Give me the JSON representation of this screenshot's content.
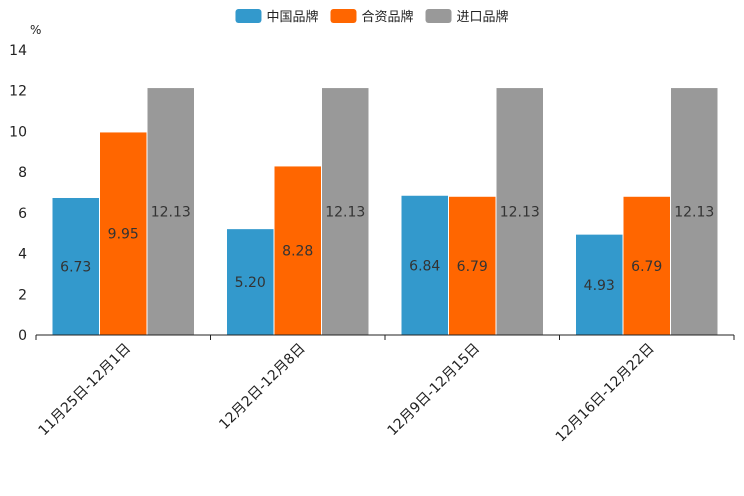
{
  "chart_data": {
    "type": "bar",
    "unit": "%",
    "categories": [
      "11月25日-12月1日",
      "12月2日-12月8日",
      "12月9日-12月15日",
      "12月16日-12月22日"
    ],
    "series": [
      {
        "name": "中国品牌",
        "color": "#3399cc",
        "values": [
          6.73,
          5.2,
          6.84,
          4.93
        ],
        "labels": [
          "6.73",
          "5.20",
          "6.84",
          "4.93"
        ]
      },
      {
        "name": "合资品牌",
        "color": "#ff6600",
        "values": [
          9.95,
          8.28,
          6.79,
          6.79
        ],
        "labels": [
          "9.95",
          "8.28",
          "6.79",
          "6.79"
        ]
      },
      {
        "name": "进口品牌",
        "color": "#999999",
        "values": [
          12.13,
          12.13,
          12.13,
          12.13
        ],
        "labels": [
          "12.13",
          "12.13",
          "12.13",
          "12.13"
        ]
      }
    ],
    "ylim": [
      0,
      14
    ],
    "yticks": [
      "0",
      "2",
      "4",
      "6",
      "8",
      "10",
      "12",
      "14"
    ],
    "legend_position": "top-center",
    "grid": false
  }
}
